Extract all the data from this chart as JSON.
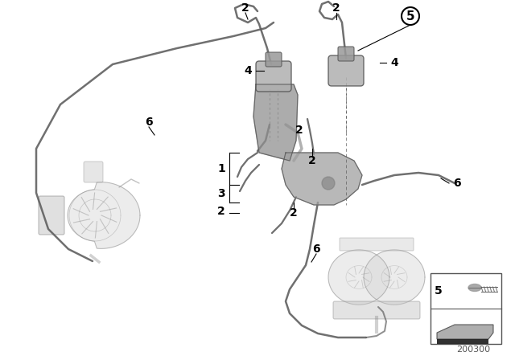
{
  "bg_color": "#ffffff",
  "line_color": "#606060",
  "label_color": "#000000",
  "fig_width": 6.4,
  "fig_height": 4.48,
  "dpi": 100,
  "part_number": "200300",
  "lw_tube": 1.8,
  "lw_leader": 0.8,
  "component_alpha": 0.55,
  "component_color": "#a8a8a8",
  "component_edge": "#888888"
}
